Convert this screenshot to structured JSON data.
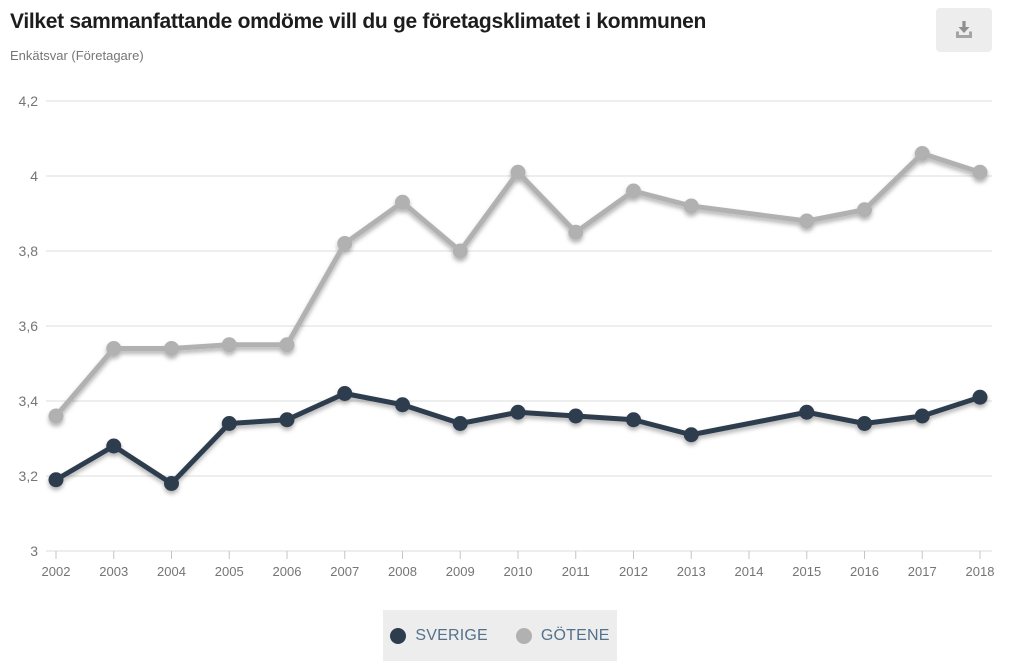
{
  "header": {
    "download_button": "download"
  },
  "chart_data": {
    "type": "line",
    "title": "Vilket sammanfattande omdöme vill du ge företagsklimatet i kommunen",
    "subtitle": "Enkätsvar (Företagare)",
    "categories": [
      "2002",
      "2003",
      "2004",
      "2005",
      "2006",
      "2007",
      "2008",
      "2009",
      "2010",
      "2011",
      "2012",
      "2013",
      "2014",
      "2015",
      "2016",
      "2017",
      "2018"
    ],
    "series": [
      {
        "name": "SVERIGE",
        "color": "#2e3d4e",
        "values": [
          3.19,
          3.28,
          3.18,
          3.34,
          3.35,
          3.42,
          3.39,
          3.34,
          3.37,
          3.36,
          3.35,
          3.31,
          null,
          3.37,
          3.34,
          3.36,
          3.41
        ]
      },
      {
        "name": "GÖTENE",
        "color": "#b1b1b1",
        "values": [
          3.36,
          3.54,
          3.54,
          3.55,
          3.55,
          3.82,
          3.93,
          3.8,
          4.01,
          3.85,
          3.96,
          3.92,
          null,
          3.88,
          3.91,
          4.06,
          4.01
        ]
      }
    ],
    "ylim": [
      3,
      4.2
    ],
    "ytick_values": [
      3,
      3.2,
      3.4,
      3.6,
      3.8,
      4,
      4.2
    ],
    "ytick_labels": [
      "3",
      "3,2",
      "3,4",
      "3,6",
      "3,8",
      "4",
      "4,2"
    ],
    "grid": true,
    "legend_position": "bottom"
  },
  "colors": {
    "gridline": "#dcdcdc",
    "axis_tick": "#c4c4c4",
    "axis_text": "#757575",
    "legend_text": "#54718c",
    "panel_bg": "#ededed",
    "icon_gray": "#979797"
  }
}
